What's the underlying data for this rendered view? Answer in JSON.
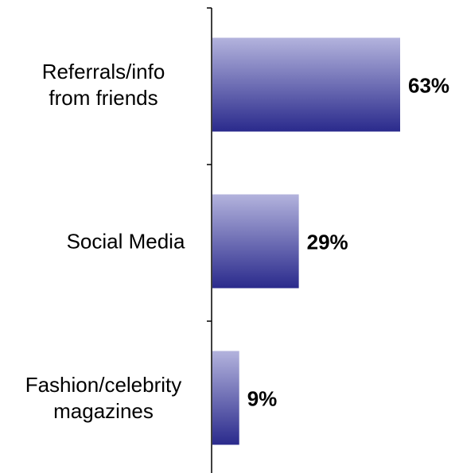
{
  "chart_data": {
    "type": "bar",
    "orientation": "horizontal",
    "categories": [
      [
        "Referrals/info",
        "from friends"
      ],
      [
        "Social Media"
      ],
      [
        "Fashion/celebrity",
        "magazines"
      ]
    ],
    "values": [
      63,
      29,
      9
    ],
    "value_labels": [
      "63%",
      "29%",
      "9%"
    ],
    "title": "",
    "xlabel": "",
    "ylabel": "",
    "xlim": [
      0,
      63
    ],
    "grid": false,
    "legend": "none",
    "colors": {
      "bar_top": "#b3b3dd",
      "bar_bottom": "#2a2a8c",
      "axis": "#000000"
    }
  }
}
